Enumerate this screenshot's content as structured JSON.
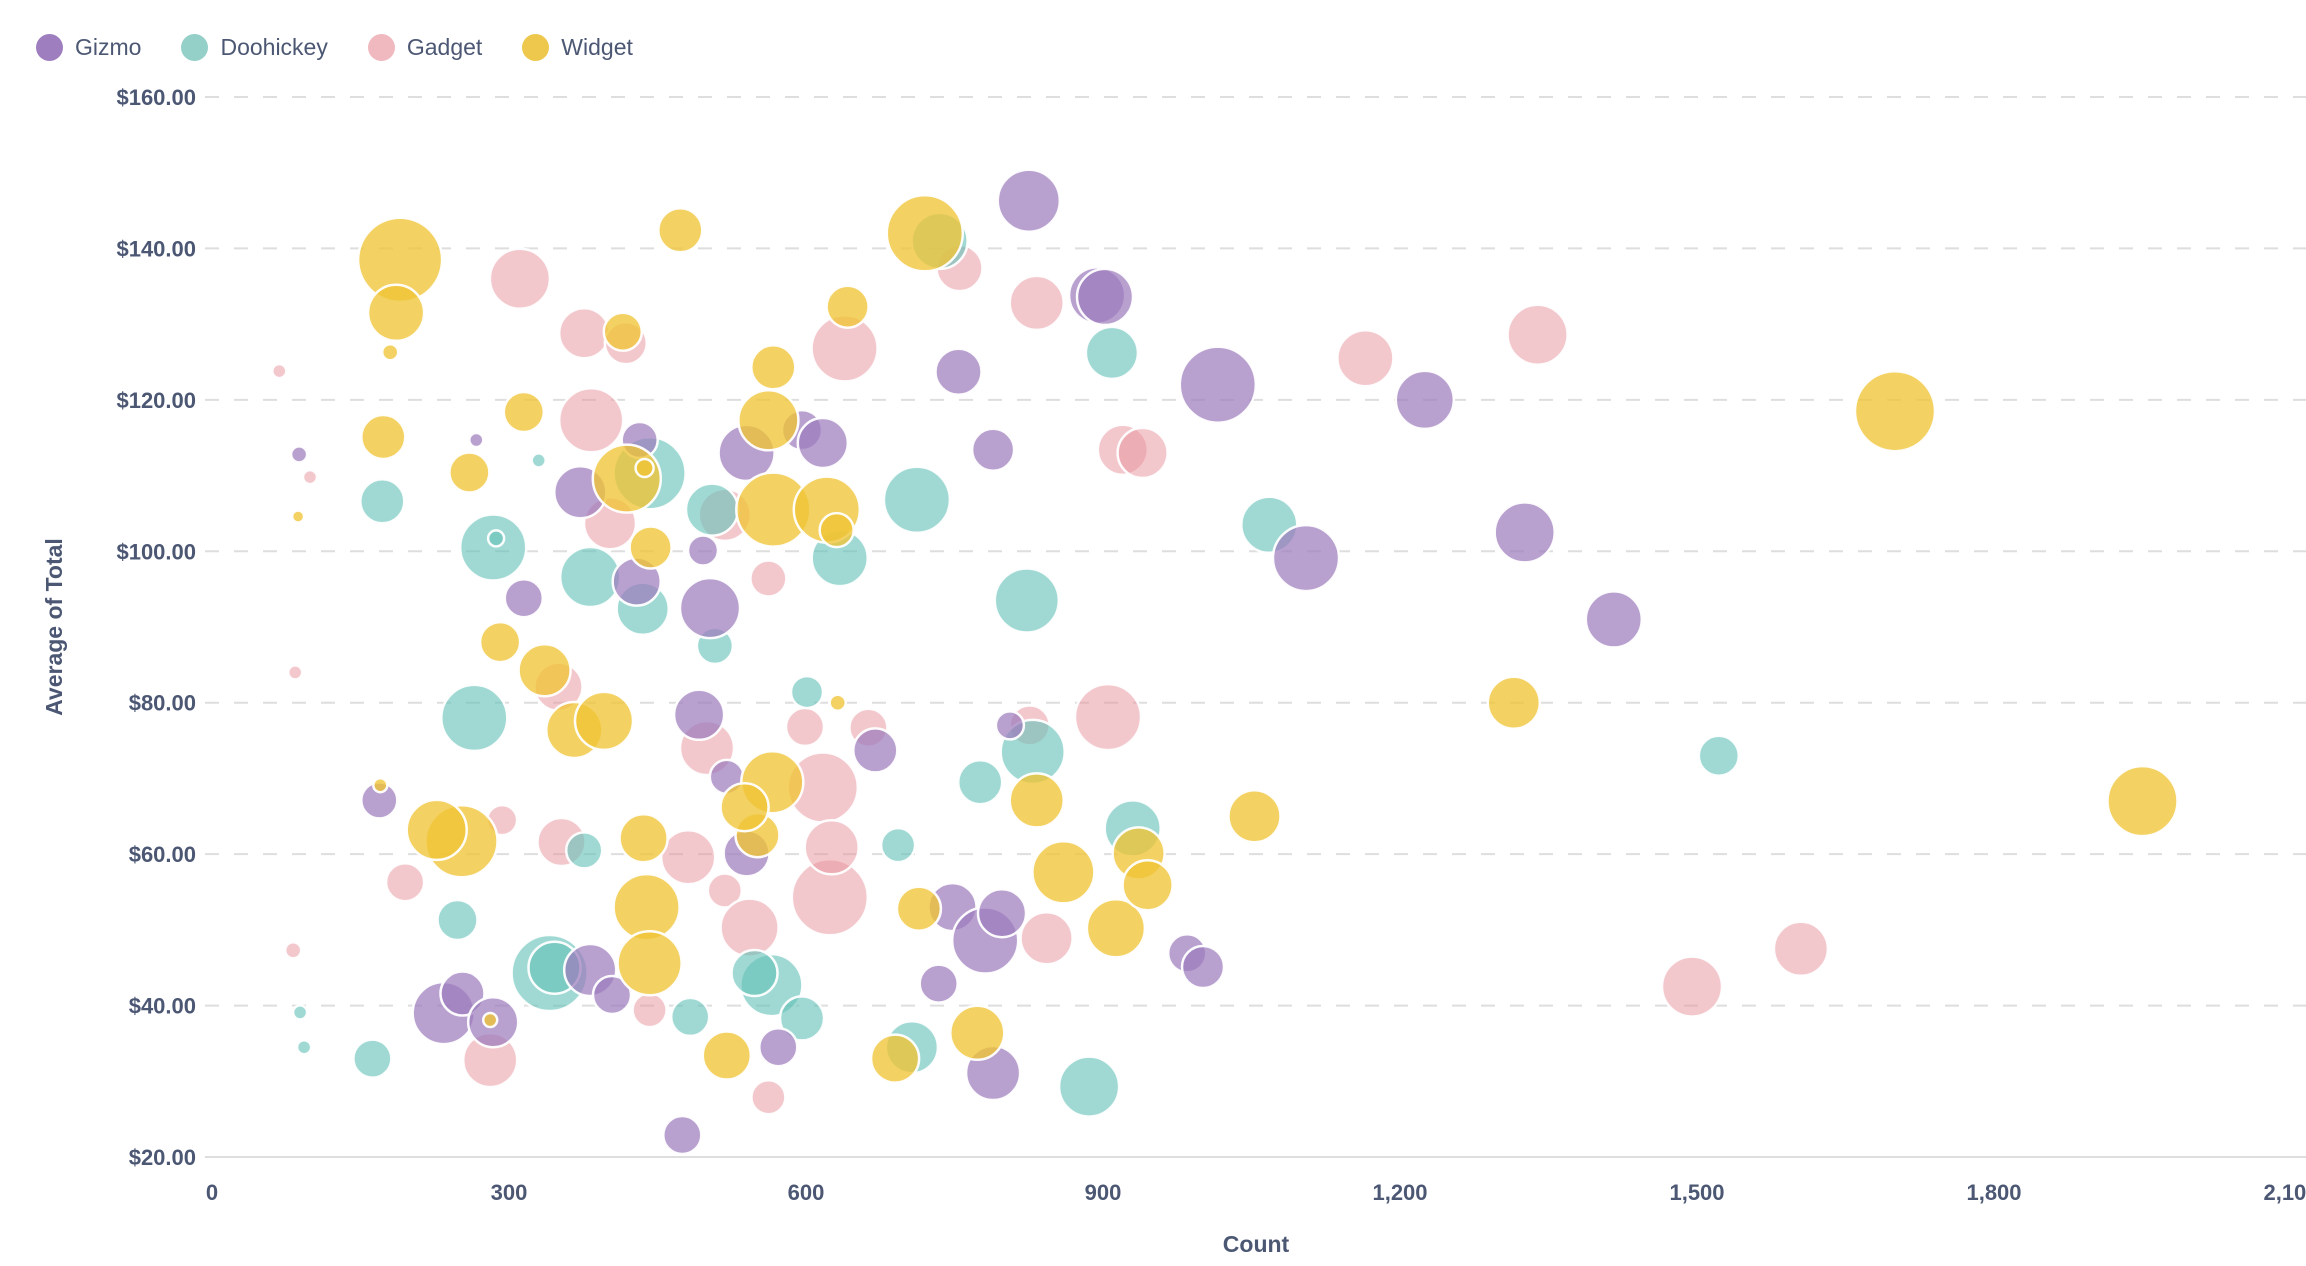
{
  "legend": {
    "items": [
      {
        "label": "Gizmo",
        "color": "#9F7EC0"
      },
      {
        "label": "Doohickey",
        "color": "#94CFC8"
      },
      {
        "label": "Gadget",
        "color": "#F0B9BF"
      },
      {
        "label": "Widget",
        "color": "#EDC84C"
      }
    ]
  },
  "chart_data": {
    "type": "scatter",
    "subtype": "bubble",
    "title": "",
    "xlabel": "Count",
    "ylabel": "Average of Total",
    "xlim": [
      0,
      2100
    ],
    "ylim": [
      20,
      160
    ],
    "grid": "horizontal-dashed",
    "legend_position": "top-left",
    "grid_color": "#DEDEDE",
    "text_color": "#4C5773",
    "x_ticks": [
      {
        "v": 0,
        "label": "0"
      },
      {
        "v": 300,
        "label": "300"
      },
      {
        "v": 600,
        "label": "600"
      },
      {
        "v": 900,
        "label": "900"
      },
      {
        "v": 1200,
        "label": "1,200"
      },
      {
        "v": 1500,
        "label": "1,500"
      },
      {
        "v": 1800,
        "label": "1,800"
      },
      {
        "v": 2100,
        "label": "2,100"
      }
    ],
    "y_ticks": [
      {
        "v": 160,
        "label": "$160.00"
      },
      {
        "v": 140,
        "label": "$140.00"
      },
      {
        "v": 120,
        "label": "$120.00"
      },
      {
        "v": 100,
        "label": "$100.00"
      },
      {
        "v": 80,
        "label": "$80.00"
      },
      {
        "v": 60,
        "label": "$60.00"
      },
      {
        "v": 40,
        "label": "$40.00"
      },
      {
        "v": 20,
        "label": "$20.00"
      }
    ],
    "draw_order": [
      "Gadget",
      "Doohickey",
      "Gizmo",
      "Widget"
    ],
    "series": [
      {
        "name": "Gizmo",
        "color": "#9C7BBC",
        "fill_opacity": 0.72,
        "points_xyr": [
          [
            88,
            112.8,
            8
          ],
          [
            267,
            114.7,
            7
          ],
          [
            432,
            114.7,
            18
          ],
          [
            825,
            146.3,
            31
          ],
          [
            894,
            133.8,
            28
          ],
          [
            902,
            133.6,
            28
          ],
          [
            754,
            123.7,
            23
          ],
          [
            1016,
            122,
            38
          ],
          [
            596,
            116,
            20
          ],
          [
            617,
            114.3,
            25
          ],
          [
            540,
            113,
            28
          ],
          [
            789,
            113.4,
            21
          ],
          [
            1225,
            120,
            29
          ],
          [
            372,
            107.8,
            26
          ],
          [
            315,
            93.8,
            19
          ],
          [
            429,
            96,
            24
          ],
          [
            503,
            92.5,
            30
          ],
          [
            496,
            100.1,
            15
          ],
          [
            492,
            78.4,
            25
          ],
          [
            670,
            73.7,
            22
          ],
          [
            806,
            77,
            14
          ],
          [
            1105,
            99.1,
            33
          ],
          [
            1326,
            102.5,
            30
          ],
          [
            1416,
            91,
            28
          ],
          [
            169,
            67.1,
            18
          ],
          [
            520,
            70.2,
            17
          ],
          [
            540,
            60.1,
            23
          ],
          [
            748,
            53,
            24
          ],
          [
            781,
            48.6,
            33
          ],
          [
            798,
            52.2,
            24
          ],
          [
            985,
            46.9,
            19
          ],
          [
            1001,
            45.1,
            21
          ],
          [
            734,
            42.9,
            19
          ],
          [
            789,
            31.1,
            27
          ],
          [
            572,
            34.5,
            19
          ],
          [
            234,
            39,
            31
          ],
          [
            253,
            41.6,
            22
          ],
          [
            284,
            37.8,
            25
          ],
          [
            382,
            44.7,
            26
          ],
          [
            404,
            41.4,
            19
          ],
          [
            475,
            22.9,
            19
          ]
        ]
      },
      {
        "name": "Doohickey",
        "color": "#66C2B8",
        "fill_opacity": 0.62,
        "points_xyr": [
          [
            89,
            39.1,
            7
          ],
          [
            93,
            34.5,
            7
          ],
          [
            172,
            106.6,
            22
          ],
          [
            330,
            112,
            7
          ],
          [
            284,
            100.5,
            33
          ],
          [
            287,
            101.7,
            8
          ],
          [
            382,
            96.6,
            30
          ],
          [
            265,
            78,
            33
          ],
          [
            442,
            110.3,
            36
          ],
          [
            435,
            92.4,
            26
          ],
          [
            735,
            141,
            28
          ],
          [
            909,
            126.2,
            26
          ],
          [
            505,
            105.5,
            26
          ],
          [
            634,
            99.1,
            28
          ],
          [
            712,
            106.8,
            33
          ],
          [
            508,
            87.5,
            18
          ],
          [
            823,
            93.5,
            32
          ],
          [
            1068,
            103.5,
            28
          ],
          [
            601,
            81.4,
            16
          ],
          [
            829,
            73.5,
            32
          ],
          [
            776,
            69.5,
            22
          ],
          [
            1522,
            73,
            20
          ],
          [
            376,
            60.5,
            18
          ],
          [
            693,
            61.2,
            17
          ],
          [
            930,
            63.4,
            28
          ],
          [
            886,
            29.3,
            30
          ],
          [
            162,
            33,
            19
          ],
          [
            341,
            44.3,
            38
          ],
          [
            346,
            45,
            26
          ],
          [
            248,
            51.3,
            20
          ],
          [
            483,
            38.5,
            19
          ],
          [
            565,
            42.7,
            31
          ],
          [
            548,
            44.3,
            23
          ],
          [
            596,
            38.3,
            22
          ],
          [
            707,
            34.5,
            26
          ]
        ]
      },
      {
        "name": "Gadget",
        "color": "#E8919B",
        "fill_opacity": 0.5,
        "points_xyr": [
          [
            68,
            123.8,
            7
          ],
          [
            99,
            109.8,
            7
          ],
          [
            311,
            136,
            30
          ],
          [
            376,
            128.8,
            25
          ],
          [
            418,
            127.5,
            21
          ],
          [
            383,
            117.3,
            32
          ],
          [
            755,
            137.4,
            23
          ],
          [
            639,
            126.8,
            33
          ],
          [
            833,
            132.8,
            27
          ],
          [
            920,
            113.4,
            25
          ],
          [
            940,
            113,
            25
          ],
          [
            1165,
            125.5,
            28
          ],
          [
            1339,
            128.6,
            30
          ],
          [
            84,
            84,
            7
          ],
          [
            350,
            82.1,
            24
          ],
          [
            402,
            103.7,
            26
          ],
          [
            518,
            104.8,
            26
          ],
          [
            562,
            96.4,
            18
          ],
          [
            599,
            76.8,
            19
          ],
          [
            663,
            76.7,
            19
          ],
          [
            826,
            77,
            20
          ],
          [
            905,
            78.1,
            33
          ],
          [
            500,
            74,
            27
          ],
          [
            617,
            68.8,
            35
          ],
          [
            481,
            59.6,
            27
          ],
          [
            353,
            61.6,
            24
          ],
          [
            293,
            64.5,
            15
          ],
          [
            195,
            56.3,
            19
          ],
          [
            518,
            55.2,
            17
          ],
          [
            543,
            50.3,
            29
          ],
          [
            624,
            54.3,
            38
          ],
          [
            626,
            60.9,
            27
          ],
          [
            843,
            48.9,
            26
          ],
          [
            1605,
            47.5,
            27
          ],
          [
            1495,
            42.5,
            30
          ],
          [
            82,
            47.3,
            8
          ],
          [
            281,
            32.8,
            27
          ],
          [
            442,
            39.4,
            17
          ],
          [
            562,
            27.9,
            17
          ]
        ]
      },
      {
        "name": "Widget",
        "color": "#EFC436",
        "fill_opacity": 0.78,
        "points_xyr": [
          [
            190,
            138.5,
            42
          ],
          [
            186,
            131.5,
            28
          ],
          [
            180,
            126.3,
            8
          ],
          [
            87,
            104.6,
            6
          ],
          [
            415,
            129,
            19
          ],
          [
            473,
            142.4,
            22
          ],
          [
            315,
            118.4,
            20
          ],
          [
            173,
            115.1,
            22
          ],
          [
            720,
            142,
            38
          ],
          [
            642,
            132.3,
            21
          ],
          [
            567,
            124.3,
            22
          ],
          [
            562,
            117.3,
            30
          ],
          [
            260,
            110.4,
            20
          ],
          [
            291,
            88,
            20
          ],
          [
            336,
            84.3,
            26
          ],
          [
            366,
            76.4,
            28
          ],
          [
            396,
            77.6,
            29
          ],
          [
            170,
            69.1,
            7
          ],
          [
            419,
            109.6,
            34
          ],
          [
            437,
            111,
            9
          ],
          [
            443,
            100.5,
            21
          ],
          [
            567,
            105.5,
            37
          ],
          [
            621,
            105.5,
            33
          ],
          [
            631,
            102.8,
            17
          ],
          [
            1315,
            80,
            26
          ],
          [
            1053,
            65,
            26
          ],
          [
            436,
            62.1,
            24
          ],
          [
            252,
            61.7,
            36
          ],
          [
            227,
            63.2,
            30
          ],
          [
            551,
            62.5,
            22
          ],
          [
            566,
            69.5,
            31
          ],
          [
            538,
            66.2,
            24
          ],
          [
            632,
            80,
            8
          ],
          [
            833,
            67.1,
            27
          ],
          [
            714,
            52.8,
            22
          ],
          [
            860,
            57.6,
            31
          ],
          [
            913,
            50.2,
            29
          ],
          [
            936,
            60.1,
            26
          ],
          [
            945,
            55.9,
            25
          ],
          [
            1700,
            118.5,
            40
          ],
          [
            1950,
            67,
            35
          ],
          [
            281,
            38.1,
            7
          ],
          [
            439,
            53,
            33
          ],
          [
            442,
            45.6,
            32
          ],
          [
            520,
            33.4,
            24
          ],
          [
            690,
            33,
            24
          ],
          [
            773,
            36.4,
            27
          ]
        ]
      }
    ]
  }
}
